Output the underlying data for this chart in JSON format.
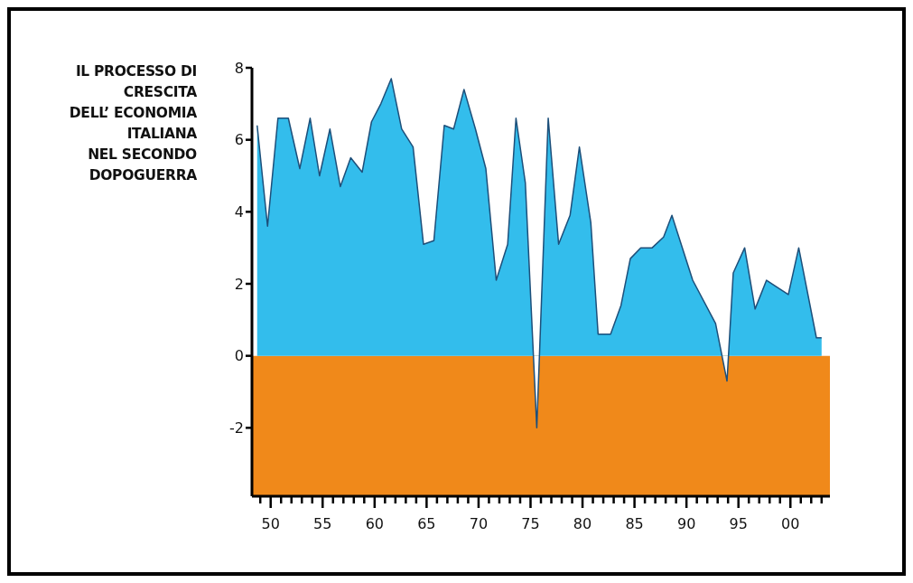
{
  "chart_data": {
    "type": "area",
    "title": "IL PROCESSO DI\nCRESCITA\nDELL’ ECONOMIA\nITALIANA\nNEL SECONDO\nDOPOGUERRA",
    "x": [
      1948.7,
      1949.7,
      1950.7,
      1951.7,
      1952.8,
      1953.8,
      1954.7,
      1955.7,
      1956.7,
      1957.7,
      1958.8,
      1959.7,
      1960.6,
      1961.6,
      1962.6,
      1963.7,
      1964.7,
      1965.7,
      1966.7,
      1967.6,
      1968.6,
      1969.7,
      1970.7,
      1971.7,
      1972.8,
      1973.6,
      1974.5,
      1975.6,
      1976.7,
      1977.7,
      1978.8,
      1979.7,
      1980.8,
      1981.5,
      1982.7,
      1983.7,
      1984.6,
      1985.6,
      1986.7,
      1987.8,
      1988.6,
      1990.6,
      1992.8,
      1993.9,
      1994.5,
      1995.6,
      1996.6,
      1997.7,
      1999.8,
      2000.8,
      2002.5,
      2003.0
    ],
    "series": [
      {
        "color": "#33bdec",
        "values": [
          6.4,
          3.6,
          6.6,
          6.6,
          5.2,
          6.6,
          5.0,
          6.3,
          4.7,
          5.5,
          5.1,
          6.5,
          7.0,
          7.7,
          6.3,
          5.8,
          3.1,
          3.2,
          6.4,
          6.3,
          7.4,
          6.3,
          5.2,
          2.1,
          3.1,
          6.6,
          4.8,
          -2.0,
          6.6,
          3.1,
          3.9,
          5.8,
          3.7,
          0.6,
          0.6,
          1.4,
          2.7,
          3.0,
          3.0,
          3.3,
          3.9,
          2.1,
          0.9,
          -0.7,
          2.3,
          3.0,
          1.3,
          2.1,
          1.7,
          3.0,
          0.5,
          0.5
        ]
      }
    ],
    "xlim": [
      1948.2,
      2003.8
    ],
    "xticks": [
      {
        "value": 1949,
        "label": null
      },
      {
        "value": 1950,
        "label": "50"
      },
      {
        "value": 1951,
        "label": null
      },
      {
        "value": 1952,
        "label": null
      },
      {
        "value": 1953,
        "label": null
      },
      {
        "value": 1954,
        "label": null
      },
      {
        "value": 1955,
        "label": "55"
      },
      {
        "value": 1956,
        "label": null
      },
      {
        "value": 1957,
        "label": null
      },
      {
        "value": 1958,
        "label": null
      },
      {
        "value": 1959,
        "label": null
      },
      {
        "value": 1960,
        "label": "60"
      },
      {
        "value": 1961,
        "label": null
      },
      {
        "value": 1962,
        "label": null
      },
      {
        "value": 1963,
        "label": null
      },
      {
        "value": 1964,
        "label": null
      },
      {
        "value": 1965,
        "label": "65"
      },
      {
        "value": 1966,
        "label": null
      },
      {
        "value": 1967,
        "label": null
      },
      {
        "value": 1968,
        "label": null
      },
      {
        "value": 1969,
        "label": null
      },
      {
        "value": 1970,
        "label": "70"
      },
      {
        "value": 1971,
        "label": null
      },
      {
        "value": 1972,
        "label": null
      },
      {
        "value": 1973,
        "label": null
      },
      {
        "value": 1974,
        "label": null
      },
      {
        "value": 1975,
        "label": "75"
      },
      {
        "value": 1976,
        "label": null
      },
      {
        "value": 1977,
        "label": null
      },
      {
        "value": 1978,
        "label": null
      },
      {
        "value": 1979,
        "label": null
      },
      {
        "value": 1980,
        "label": "80"
      },
      {
        "value": 1981,
        "label": null
      },
      {
        "value": 1982,
        "label": null
      },
      {
        "value": 1983,
        "label": null
      },
      {
        "value": 1984,
        "label": null
      },
      {
        "value": 1985,
        "label": "85"
      },
      {
        "value": 1986,
        "label": null
      },
      {
        "value": 1987,
        "label": null
      },
      {
        "value": 1988,
        "label": null
      },
      {
        "value": 1989,
        "label": null
      },
      {
        "value": 1990,
        "label": "90"
      },
      {
        "value": 1991,
        "label": null
      },
      {
        "value": 1992,
        "label": null
      },
      {
        "value": 1993,
        "label": null
      },
      {
        "value": 1994,
        "label": null
      },
      {
        "value": 1995,
        "label": "95"
      },
      {
        "value": 1996,
        "label": null
      },
      {
        "value": 1997,
        "label": null
      },
      {
        "value": 1998,
        "label": null
      },
      {
        "value": 1999,
        "label": null
      },
      {
        "value": 2000,
        "label": "00"
      },
      {
        "value": 2001,
        "label": null
      },
      {
        "value": 2002,
        "label": null
      },
      {
        "value": 2003,
        "label": null
      }
    ],
    "ylim": [
      -3.9,
      8
    ],
    "yticks": [
      -2,
      0,
      2,
      4,
      6,
      8
    ],
    "bands": [
      {
        "axis": "y",
        "from": -3.9,
        "to": 0,
        "color": "#f0891a"
      }
    ],
    "grid": false
  }
}
